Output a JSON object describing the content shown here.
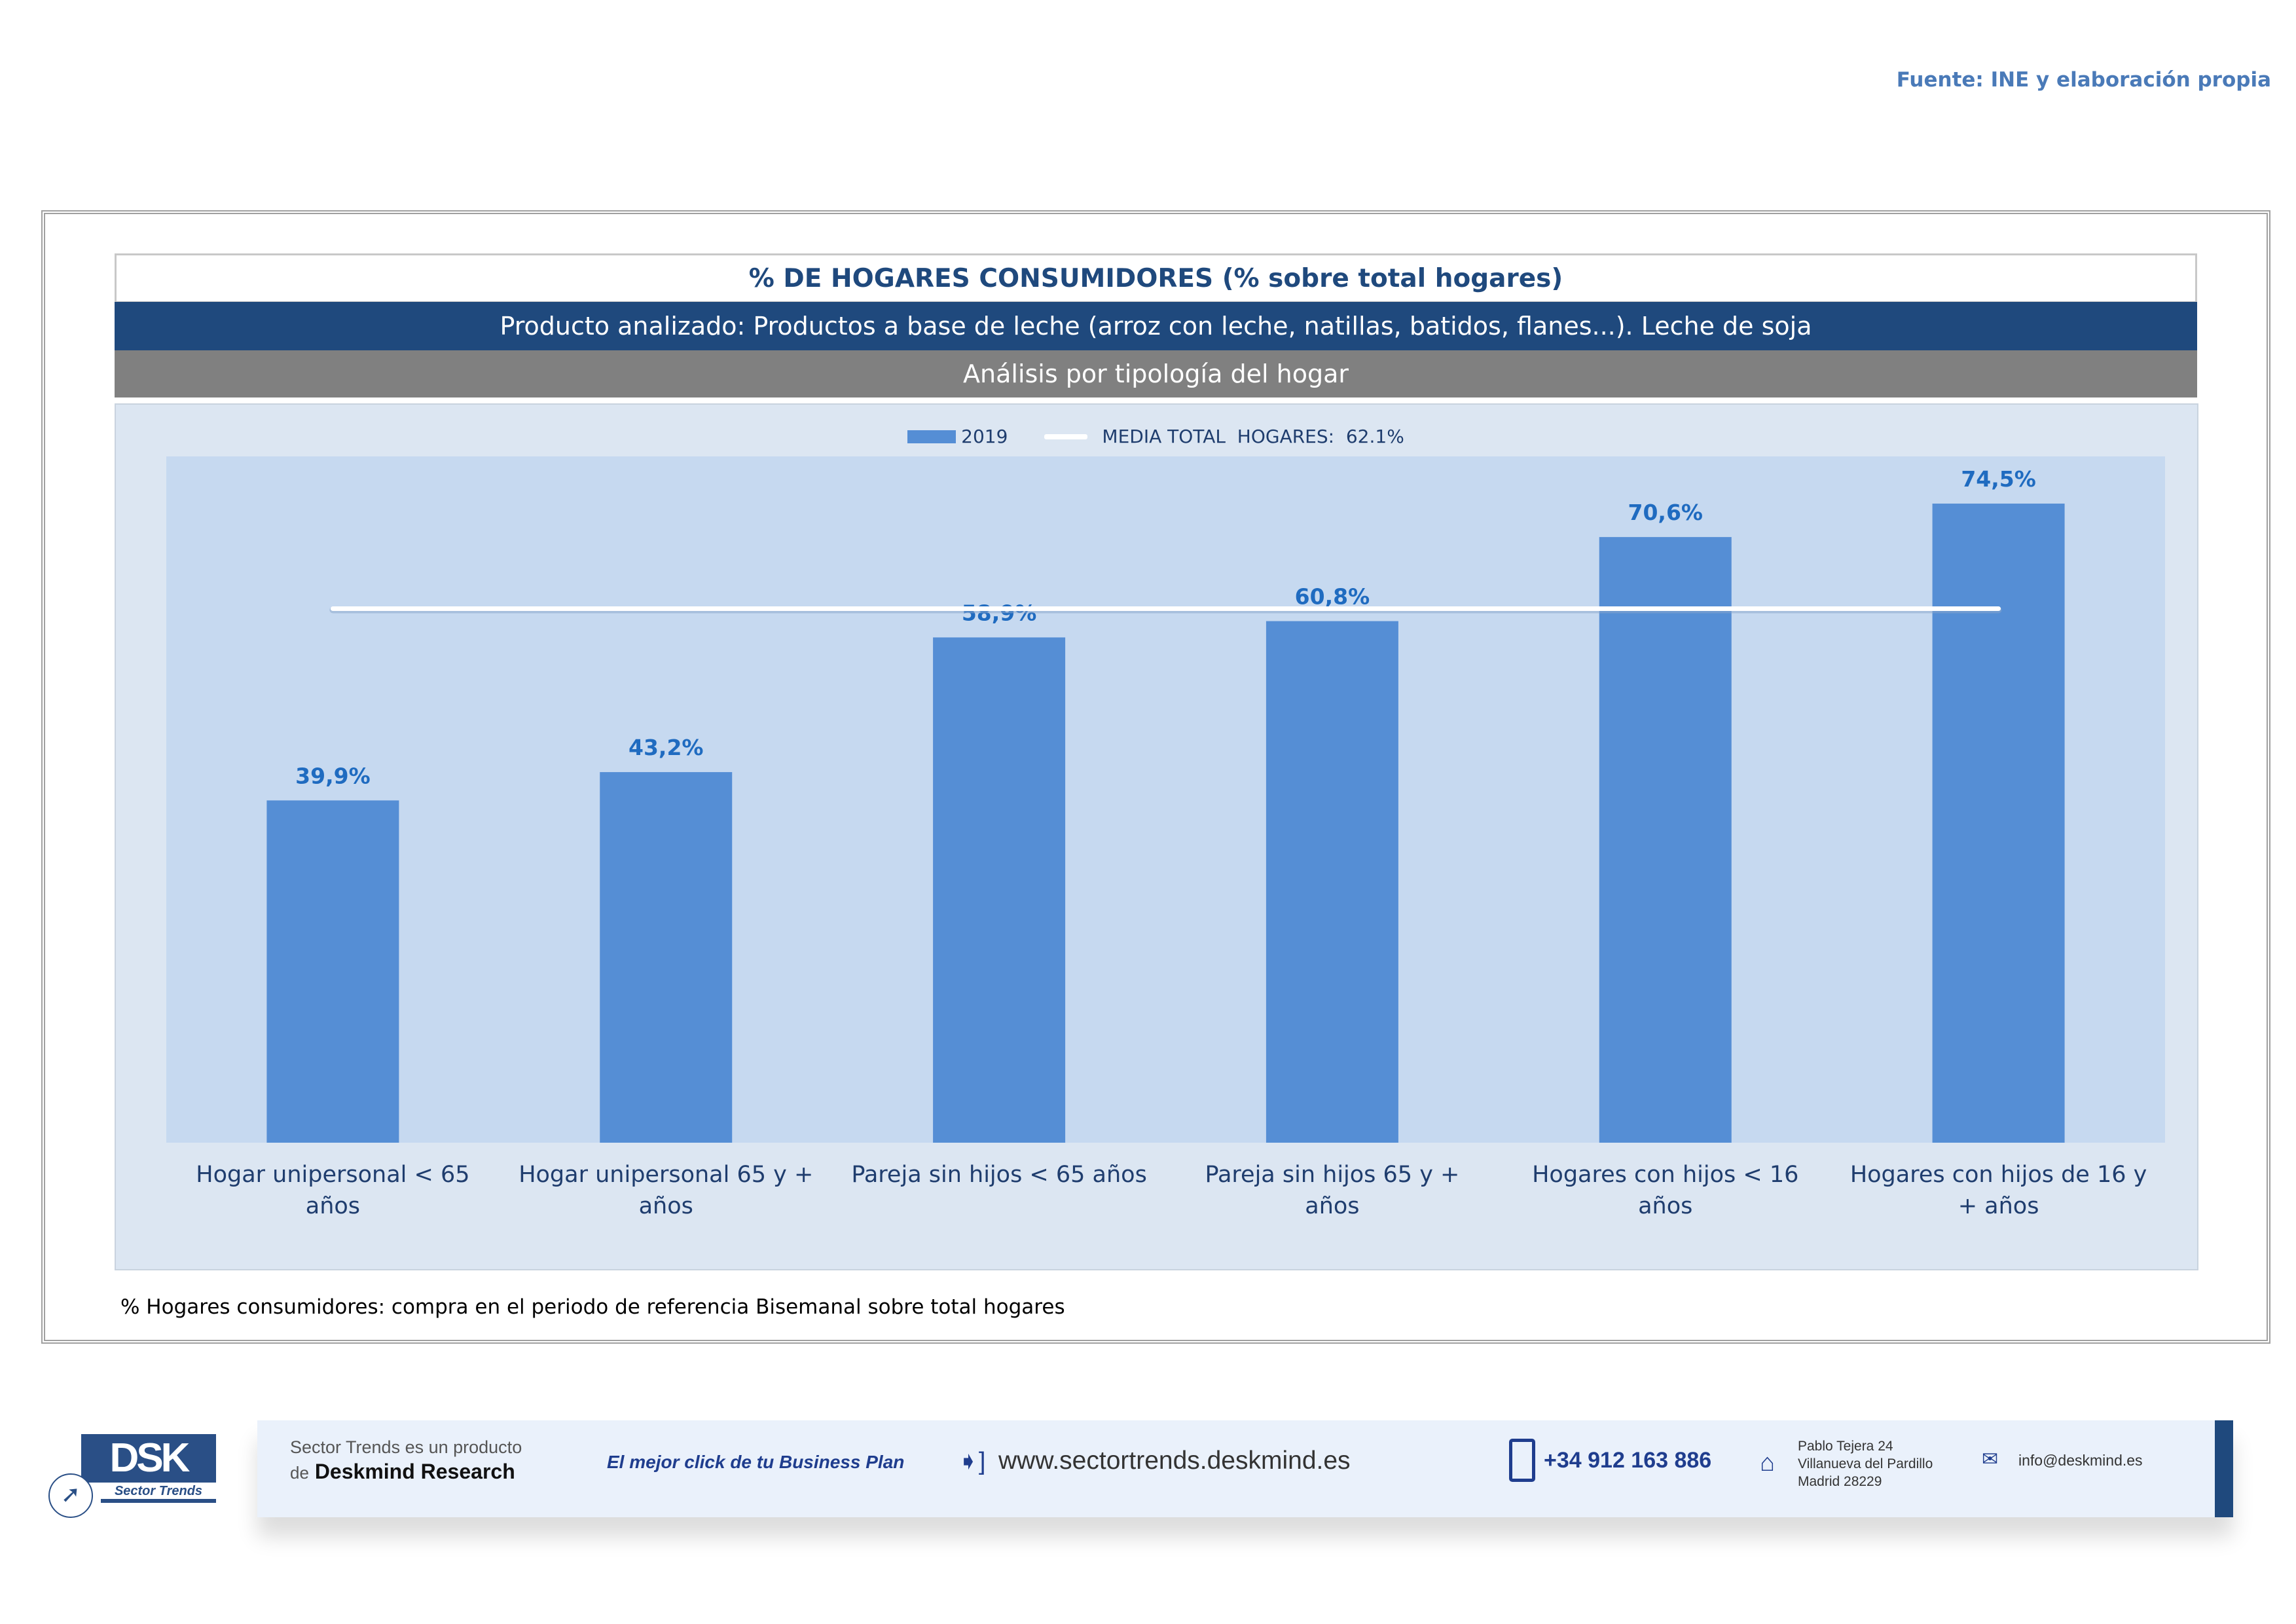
{
  "source": "Fuente: INE y elaboración propia",
  "header": {
    "title": "% DE HOGARES CONSUMIDORES (% sobre total hogares)",
    "product": "Producto analizado: Productos a base de leche (arroz con leche, natillas, batidos, flanes...). Leche de soja",
    "analysis": "Análisis por tipología del hogar"
  },
  "chart_data": {
    "type": "bar",
    "title": "% DE HOGARES CONSUMIDORES (% sobre total hogares)",
    "categories": [
      "Hogar unipersonal < 65 años",
      "Hogar unipersonal  65 y + años",
      "Pareja sin hijos < 65 años",
      "Pareja sin hijos 65 y + años",
      "Hogares con hijos < 16 años",
      "Hogares con hijos de 16 y + años"
    ],
    "series": [
      {
        "name": "2019",
        "values": [
          39.9,
          43.2,
          58.9,
          60.8,
          70.6,
          74.5
        ],
        "color": "#558ed5"
      }
    ],
    "data_labels": [
      "39,9%",
      "43,2%",
      "58,9%",
      "60,8%",
      "70,6%",
      "74,5%"
    ],
    "reference_line": {
      "name": "MEDIA TOTAL  HOGARES:  62.1%",
      "value": 62.1,
      "color": "#ffffff"
    },
    "legend": [
      "2019",
      "MEDIA TOTAL  HOGARES:  62.1%"
    ],
    "legend_position": "top",
    "ylim": [
      0,
      80
    ],
    "grid": false,
    "xlabel": "",
    "ylabel": ""
  },
  "note": "% Hogares consumidores: compra en el periodo de referencia Bisemanal sobre total hogares",
  "footer": {
    "logo_text": "DSK",
    "logo_sub": "Sector Trends",
    "product_line1": "Sector Trends es un producto",
    "product_line2_pre": "de",
    "product_line2_brand": "Deskmind Research",
    "slogan": "El mejor click de tu Business Plan",
    "website": "www.sectortrends.deskmind.es",
    "phone": "+34 912 163 886",
    "address": [
      "Pablo Tejera 24",
      "Villanueva del Pardillo",
      "Madrid 28229"
    ],
    "email": "info@deskmind.es"
  }
}
